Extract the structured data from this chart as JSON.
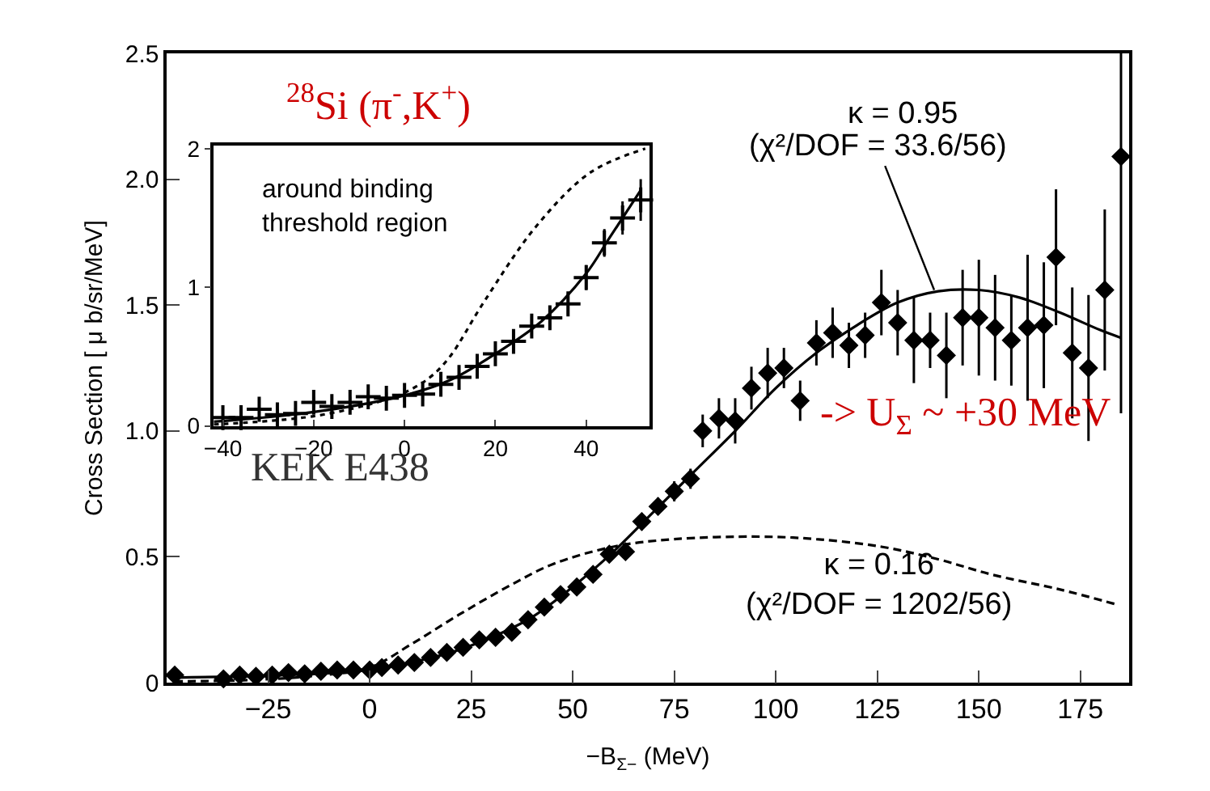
{
  "chart_data": [
    {
      "type": "scatter",
      "xlabel": "−B$_{Σ−}$ (MeV)",
      "ylabel": "Cross Section [ μ b/sr/MeV]",
      "xlim": [
        -50,
        187
      ],
      "ylim": [
        0,
        2.5
      ],
      "xticks": [
        {
          "value": -25,
          "label": "−25"
        },
        0,
        25,
        50,
        75,
        100,
        125,
        150,
        175
      ],
      "yticks": [
        0,
        0.5,
        {
          "value": 1,
          "label": "1.0"
        },
        1.5,
        {
          "value": 2,
          "label": "2.0"
        },
        2.5
      ],
      "series": [
        {
          "marker": "diamond",
          "color": "#000000",
          "x": [
            -48,
            -36,
            -32,
            -28,
            -24,
            -20,
            -16,
            -12,
            -8,
            -4,
            0,
            3,
            7,
            11,
            15,
            19,
            23,
            27,
            31,
            35,
            39,
            43,
            47,
            51,
            55,
            59,
            63,
            67,
            71,
            75,
            79,
            82,
            86,
            90,
            94,
            98,
            102,
            106,
            110,
            114,
            118,
            122,
            126,
            130,
            134,
            138,
            142,
            146,
            150,
            154,
            158,
            162,
            166,
            169,
            173,
            177,
            181,
            185
          ],
          "values": [
            0.03,
            0.015,
            0.03,
            0.025,
            0.03,
            0.04,
            0.035,
            0.045,
            0.05,
            0.05,
            0.05,
            0.06,
            0.07,
            0.08,
            0.1,
            0.12,
            0.14,
            0.17,
            0.18,
            0.2,
            0.25,
            0.3,
            0.35,
            0.38,
            0.43,
            0.51,
            0.52,
            0.64,
            0.7,
            0.76,
            0.81,
            1.0,
            1.05,
            1.04,
            1.17,
            1.23,
            1.25,
            1.12,
            1.35,
            1.39,
            1.34,
            1.38,
            1.51,
            1.43,
            1.36,
            1.36,
            1.3,
            1.45,
            1.45,
            1.41,
            1.36,
            1.41,
            1.42,
            1.69,
            1.31,
            1.25,
            1.56,
            2.09
          ],
          "errors": [
            null,
            null,
            null,
            null,
            null,
            null,
            null,
            null,
            null,
            null,
            null,
            null,
            null,
            null,
            null,
            null,
            null,
            null,
            null,
            null,
            null,
            null,
            null,
            0.03,
            0.03,
            0.03,
            0.03,
            0.035,
            0.035,
            0.04,
            0.04,
            0.065,
            0.08,
            0.09,
            0.085,
            0.1,
            0.08,
            0.08,
            0.09,
            0.1,
            0.09,
            0.09,
            0.13,
            0.13,
            0.17,
            0.11,
            0.17,
            0.19,
            0.23,
            0.21,
            0.18,
            0.29,
            0.25,
            0.27,
            0.26,
            0.29,
            0.32,
            [
              1.07,
              2.5
            ]
          ]
        },
        {
          "type": "line",
          "line_style": "solid",
          "color": "#000000",
          "x": [
            -48,
            -20,
            0,
            10,
            20,
            30,
            40,
            50,
            60,
            70,
            80,
            90,
            100,
            110,
            120,
            130,
            140,
            150,
            160,
            170,
            180,
            185
          ],
          "values": [
            0.02,
            0.03,
            0.05,
            0.08,
            0.12,
            0.18,
            0.26,
            0.38,
            0.52,
            0.68,
            0.84,
            1.0,
            1.17,
            1.31,
            1.42,
            1.51,
            1.555,
            1.56,
            1.53,
            1.47,
            1.4,
            1.37
          ]
        },
        {
          "type": "line",
          "line_style": "dashed",
          "color": "#000000",
          "x": [
            -48,
            -30,
            -15,
            0,
            10,
            22,
            35,
            45,
            60,
            75,
            96,
            110,
            126,
            140,
            153,
            170,
            184
          ],
          "values": [
            0.005,
            0.01,
            0.025,
            0.06,
            0.15,
            0.27,
            0.39,
            0.47,
            0.54,
            0.57,
            0.58,
            0.57,
            0.54,
            0.49,
            0.43,
            0.37,
            0.31
          ]
        }
      ],
      "annotations": [
        {
          "text": "(χ²/DOF = 33.6/56)",
          "x": 139,
          "y": 1.56
        },
        "κ = 0.16\n(χ²/DOF = 1202/56)",
        "$^{28}$Si (π$^{-}$,K$^{+}$)",
        "KEK E438",
        "-> U$_{Σ}$ ~ +30 MeV",
        "κ = 0.95"
      ]
    },
    {
      "type": "scatter",
      "xlim": [
        -42,
        54
      ],
      "ylim": [
        0,
        2.02
      ],
      "xticks": [
        {
          "value": -40,
          "label": "−40"
        },
        {
          "value": -20,
          "label": "−20"
        },
        0,
        20,
        40
      ],
      "yticks": [
        0,
        1,
        2
      ],
      "series": [
        {
          "marker": "cross",
          "color": "#000000",
          "x": [
            -40,
            -36,
            -32,
            -28,
            -24,
            -20,
            -16,
            -12,
            -8,
            -4,
            0,
            4,
            8,
            12,
            16,
            20,
            24,
            28,
            32,
            36,
            40,
            44,
            48,
            52
          ],
          "values": [
            0.06,
            0.06,
            0.12,
            0.08,
            0.09,
            0.17,
            0.14,
            0.17,
            0.21,
            0.2,
            0.22,
            0.23,
            0.3,
            0.35,
            0.43,
            0.52,
            0.61,
            0.72,
            0.78,
            0.88,
            1.07,
            1.32,
            1.5,
            1.63
          ],
          "errors": [
            0.04,
            0.04,
            0.04,
            0.04,
            0.04,
            0.04,
            0.04,
            0.04,
            0.04,
            0.04,
            0.05,
            0.05,
            0.05,
            0.05,
            0.06,
            0.06,
            0.07,
            0.07,
            0.08,
            0.08,
            0.09,
            0.1,
            0.12,
            0.15
          ]
        },
        {
          "type": "line",
          "line_style": "solid",
          "color": "#000000",
          "x": [
            -42,
            -20,
            0,
            10,
            20,
            30,
            40,
            45,
            52
          ],
          "values": [
            0.03,
            0.1,
            0.22,
            0.33,
            0.52,
            0.75,
            1.1,
            1.35,
            1.7
          ]
        },
        {
          "type": "line",
          "line_style": "dotted",
          "color": "#000000",
          "x": [
            -42,
            -20,
            -5,
            0,
            5.6,
            10,
            17.4,
            29,
            41,
            53
          ],
          "values": [
            0.01,
            0.07,
            0.18,
            0.24,
            0.35,
            0.5,
            0.89,
            1.44,
            1.83,
            2.0
          ]
        }
      ],
      "annotations": [
        "around binding\nthreshold region"
      ]
    }
  ]
}
